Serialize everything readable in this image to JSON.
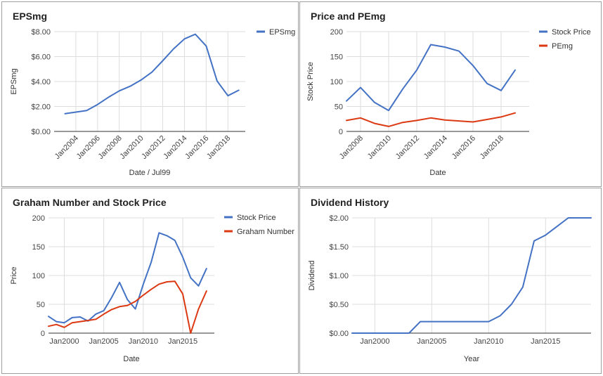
{
  "chart_data": [
    {
      "type": "line",
      "title": "EPSmg",
      "xlabel": "Date / Jul99",
      "ylabel": "EPSmg",
      "x_axis": "date",
      "xlim": [
        2002,
        2019.6
      ],
      "ylim": [
        0,
        8
      ],
      "yticks": [
        0,
        2,
        4,
        6,
        8
      ],
      "ytick_labels": [
        "$0.00",
        "$2.00",
        "$4.00",
        "$6.00",
        "$8.00"
      ],
      "xticks": [
        2004,
        2006,
        2008,
        2010,
        2012,
        2014,
        2016,
        2018
      ],
      "xtick_labels": [
        "Jan2004",
        "Jan2006",
        "Jan2008",
        "Jan2010",
        "Jan2012",
        "Jan2014",
        "Jan2016",
        "Jan2018"
      ],
      "xtick_rotated": true,
      "grid": true,
      "legend": "right",
      "series": [
        {
          "name": "EPSmg",
          "color": "#4472c4",
          "x": [
            2003,
            2005,
            2006,
            2007,
            2008,
            2009,
            2010,
            2011,
            2012,
            2013,
            2014,
            2015,
            2016,
            2017,
            2018,
            2019
          ],
          "y": [
            1.42,
            1.68,
            2.16,
            2.74,
            3.25,
            3.62,
            4.12,
            4.75,
            5.66,
            6.62,
            7.42,
            7.79,
            6.85,
            4.05,
            2.86,
            3.3
          ]
        }
      ]
    },
    {
      "type": "line",
      "title": "Price and PEmg",
      "xlabel": "Date",
      "ylabel": "Stock Price",
      "x_axis": "date",
      "xlim": [
        2007,
        2020
      ],
      "ylim": [
        0,
        200
      ],
      "yticks": [
        0,
        50,
        100,
        150,
        200
      ],
      "ytick_labels": [
        "0",
        "50",
        "100",
        "150",
        "200"
      ],
      "xticks": [
        2008,
        2010,
        2012,
        2014,
        2016,
        2018
      ],
      "xtick_labels": [
        "Jan2008",
        "Jan2010",
        "Jan2012",
        "Jan2014",
        "Jan2016",
        "Jan2018"
      ],
      "xtick_rotated": true,
      "grid": true,
      "legend": "right",
      "series": [
        {
          "name": "Stock Price",
          "color": "#4472c4",
          "x": [
            2007,
            2008,
            2009,
            2010,
            2011,
            2012,
            2013,
            2014,
            2015,
            2016,
            2017,
            2018,
            2019
          ],
          "y": [
            61,
            88,
            58,
            42,
            85,
            123,
            174,
            169,
            161,
            132,
            96,
            82,
            123
          ]
        },
        {
          "name": "PEmg",
          "color": "#dc3912",
          "x": [
            2007,
            2008,
            2009,
            2010,
            2011,
            2012,
            2013,
            2014,
            2015,
            2016,
            2017,
            2018,
            2019
          ],
          "y": [
            22,
            27,
            16,
            10,
            18,
            22,
            27,
            23,
            21,
            19,
            24,
            29,
            37
          ]
        }
      ]
    },
    {
      "type": "line",
      "title": "Graham Number and Stock Price",
      "xlabel": "Date",
      "ylabel": "Price",
      "x_axis": "date",
      "xlim": [
        1998,
        2019
      ],
      "ylim": [
        0,
        200
      ],
      "yticks": [
        0,
        50,
        100,
        150,
        200
      ],
      "ytick_labels": [
        "0",
        "50",
        "100",
        "150",
        "200"
      ],
      "xticks": [
        2000,
        2005,
        2010,
        2015
      ],
      "xtick_labels": [
        "Jan2000",
        "Jan2005",
        "Jan2010",
        "Jan2015"
      ],
      "xtick_rotated": false,
      "grid": true,
      "legend": "right",
      "series": [
        {
          "name": "Stock Price",
          "color": "#4472c4",
          "x": [
            1998,
            1999,
            2000,
            2001,
            2002,
            2003,
            2004,
            2005,
            2006,
            2007,
            2008,
            2009,
            2010,
            2011,
            2012,
            2013,
            2014,
            2015,
            2016,
            2017,
            2018
          ],
          "y": [
            29,
            20,
            18,
            27,
            28,
            21,
            33,
            39,
            62,
            88,
            58,
            42,
            85,
            123,
            174,
            169,
            161,
            132,
            96,
            82,
            112
          ]
        },
        {
          "name": "Graham Number",
          "color": "#dc3912",
          "x": [
            1998,
            1999,
            2000,
            2001,
            2002,
            2003,
            2004,
            2005,
            2006,
            2007,
            2008,
            2009,
            2010,
            2011,
            2012,
            2013,
            2014,
            2015,
            2016,
            2017,
            2018
          ],
          "y": [
            12,
            15,
            10,
            18,
            20,
            22,
            24,
            33,
            41,
            46,
            48,
            55,
            66,
            76,
            85,
            89,
            90,
            68,
            0,
            42,
            73
          ]
        }
      ]
    },
    {
      "type": "line",
      "title": "Dividend History",
      "xlabel": "Year",
      "ylabel": "Dividend",
      "x_axis": "date",
      "xlim": [
        1998,
        2019
      ],
      "ylim": [
        0,
        2
      ],
      "yticks": [
        0,
        0.5,
        1,
        1.5,
        2
      ],
      "ytick_labels": [
        "$0.00",
        "$0.50",
        "$1.00",
        "$1.50",
        "$2.00"
      ],
      "xticks": [
        2000,
        2005,
        2010,
        2015
      ],
      "xtick_labels": [
        "Jan2000",
        "Jan2005",
        "Jan2010",
        "Jan2015"
      ],
      "xtick_rotated": false,
      "grid": true,
      "legend": "none",
      "series": [
        {
          "name": "",
          "color": "#4472c4",
          "x": [
            1998,
            2003,
            2004,
            2005,
            2006,
            2007,
            2008,
            2009,
            2010,
            2011,
            2012,
            2013,
            2014,
            2015,
            2016,
            2017,
            2018,
            2019
          ],
          "y": [
            0,
            0,
            0.2,
            0.2,
            0.2,
            0.2,
            0.2,
            0.2,
            0.2,
            0.3,
            0.5,
            0.8,
            1.6,
            1.7,
            1.85,
            2.0,
            2.0,
            2.0
          ]
        }
      ]
    }
  ]
}
